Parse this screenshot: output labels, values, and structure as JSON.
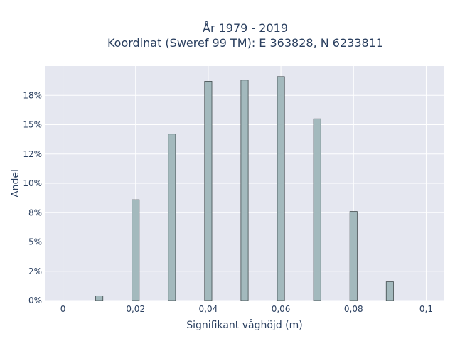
{
  "chart_data": {
    "type": "bar",
    "title_line1": "År 1979 - 2019",
    "title_line2": "Koordinat (Sweref 99 TM): E 363828, N 6233811",
    "xlabel": "Signifikant våghöjd (m)",
    "ylabel": "Andel",
    "x": [
      0.01,
      0.02,
      0.03,
      0.04,
      0.05,
      0.06,
      0.07,
      0.08,
      0.09
    ],
    "values": [
      0.4,
      8.6,
      14.2,
      18.7,
      18.8,
      19.1,
      15.5,
      7.6,
      1.6
    ],
    "xlim": [
      -0.005,
      0.105
    ],
    "ylim": [
      0,
      20
    ],
    "x_ticks": [
      0,
      0.02,
      0.04,
      0.06,
      0.08,
      0.1
    ],
    "x_tick_labels": [
      "0",
      "0,02",
      "0,04",
      "0,06",
      "0,08",
      "0,1"
    ],
    "y_ticks": [
      0,
      2.5,
      5,
      7.5,
      10,
      12.5,
      15,
      17.5
    ],
    "y_tick_labels": [
      "0%",
      "2%",
      "5%",
      "8%",
      "10%",
      "12%",
      "15%",
      "18%"
    ],
    "grid": true,
    "bar_color": "#a3b9bd",
    "bar_edge_color": "#3f4a4c",
    "plot_bg": "#e5e7f0"
  }
}
